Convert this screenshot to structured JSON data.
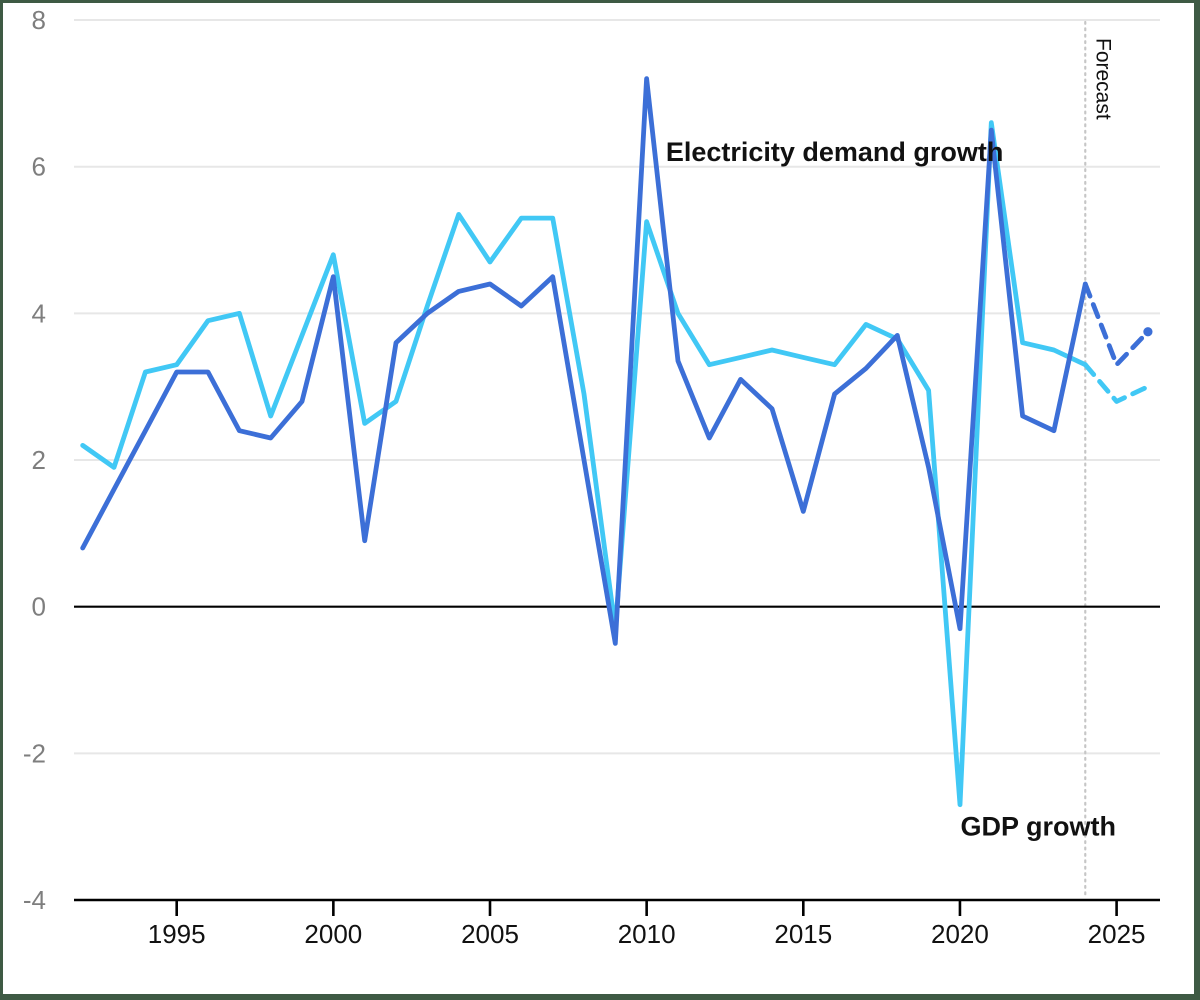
{
  "frame": {
    "border_color": "#3E5A44",
    "background_color": "#FFFFFF"
  },
  "chart_data": {
    "type": "line",
    "title": "",
    "xlabel": "",
    "ylabel": "",
    "xlim": [
      1992,
      2026
    ],
    "ylim": [
      -4,
      8
    ],
    "grid": "horizontal",
    "x_ticks": [
      1995,
      2000,
      2005,
      2010,
      2015,
      2020,
      2025
    ],
    "y_ticks": [
      8,
      6,
      4,
      2,
      0,
      -2,
      -4
    ],
    "years": [
      1992,
      1993,
      1994,
      1995,
      1996,
      1997,
      1998,
      1999,
      2000,
      2001,
      2002,
      2003,
      2004,
      2005,
      2006,
      2007,
      2008,
      2009,
      2010,
      2011,
      2012,
      2013,
      2014,
      2015,
      2016,
      2017,
      2018,
      2019,
      2020,
      2021,
      2022,
      2023,
      2024,
      2025,
      2026
    ],
    "series": [
      {
        "name": "GDP growth",
        "color": "#41C8F5",
        "values": [
          2.2,
          1.9,
          3.2,
          3.3,
          3.9,
          4.0,
          2.6,
          3.7,
          4.8,
          2.5,
          2.8,
          4.1,
          5.35,
          4.7,
          5.3,
          5.3,
          2.9,
          -0.3,
          5.25,
          4.0,
          3.3,
          3.4,
          3.5,
          3.4,
          3.3,
          3.85,
          3.65,
          2.95,
          -2.7,
          6.6,
          3.6,
          3.5,
          3.3,
          2.8,
          3.0
        ]
      },
      {
        "name": "Electricity demand growth",
        "color": "#3C6FD7",
        "values": [
          0.8,
          1.6,
          2.4,
          3.2,
          3.2,
          2.4,
          2.3,
          2.8,
          4.5,
          0.9,
          3.6,
          4.0,
          4.3,
          4.4,
          4.1,
          4.5,
          2.0,
          -0.5,
          7.2,
          3.35,
          2.3,
          3.1,
          2.7,
          1.3,
          2.9,
          3.25,
          3.7,
          1.9,
          -0.3,
          6.5,
          2.6,
          2.4,
          4.4,
          3.3,
          3.75
        ]
      }
    ],
    "forecast_start_year": 2024,
    "forecast_label": "Forecast",
    "annotations": [
      {
        "text": "Electricity demand growth",
        "year": 2016.0,
        "value": 6.2,
        "anchor": "middle",
        "series": "electricity"
      },
      {
        "text": "GDP growth",
        "year": 2022.5,
        "value": -3.0,
        "anchor": "middle",
        "series": "gdp"
      }
    ],
    "legend_position": "none"
  },
  "styles": {
    "gridline_color": "#E7E7E7",
    "zero_line_color": "#000000",
    "axis_line_color": "#000000",
    "x_tick_label_color": "#111111",
    "y_tick_label_color": "#7E7E7E",
    "annotation_color": "#111111",
    "forecast_divider_color": "#C6C6C6",
    "forecast_label_color": "#111111"
  }
}
